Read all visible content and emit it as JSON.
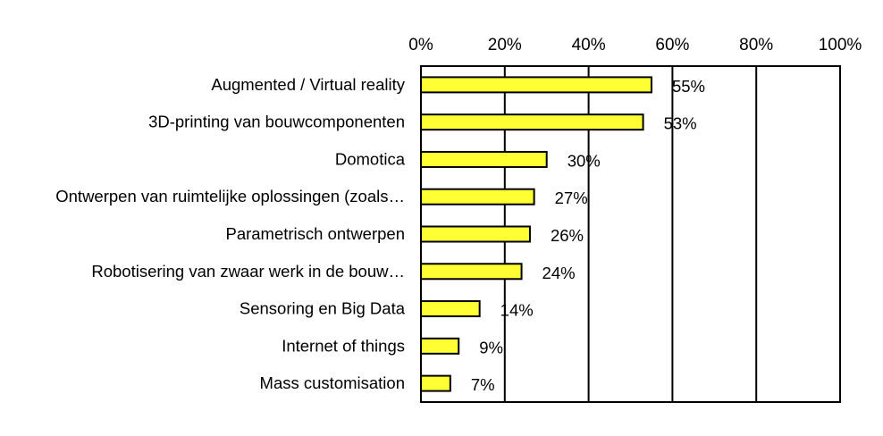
{
  "chart_data": {
    "type": "bar",
    "orientation": "horizontal",
    "categories": [
      "Augmented / Virtual reality",
      "3D-printing van bouwcomponenten",
      "Domotica",
      "Ontwerpen van ruimtelijke oplossingen (zoals…",
      "Parametrisch ontwerpen",
      "Robotisering van zwaar werk in de bouw…",
      "Sensoring en Big Data",
      "Internet of things",
      "Mass customisation"
    ],
    "values": [
      55,
      53,
      30,
      27,
      26,
      24,
      14,
      9,
      7
    ],
    "value_labels": [
      "55%",
      "53%",
      "30%",
      "27%",
      "26%",
      "24%",
      "14%",
      "9%",
      "7%"
    ],
    "x_ticks": [
      0,
      20,
      40,
      60,
      80,
      100
    ],
    "x_tick_labels": [
      "0%",
      "20%",
      "40%",
      "60%",
      "80%",
      "100%"
    ],
    "xlim": [
      0,
      100
    ],
    "axis_position": "top",
    "grid": "vertical",
    "legend": "none",
    "bar_color": "#ffff33",
    "bar_edge_color": "#000000"
  }
}
